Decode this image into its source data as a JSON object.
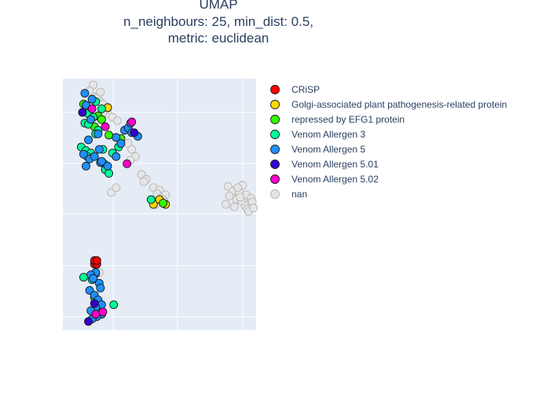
{
  "chart_data": {
    "type": "scatter",
    "title_lines": [
      "UMAP",
      "n_neighbours: 25, min_dist: 0.5,",
      "metric: euclidean"
    ],
    "xlabel": "",
    "ylabel": "",
    "xlim": [
      0,
      15
    ],
    "ylim": [
      0,
      20
    ],
    "grid": true,
    "legend_position": "right",
    "series": [
      {
        "name": "CRiSP",
        "color": "#ff0000",
        "x": [
          2.1,
          2.3,
          2.1,
          2.3
        ],
        "y": [
          5.0,
          5.0,
          5.3,
          5.3
        ]
      },
      {
        "name": "Golgi-associated plant pathogenesis-related protein",
        "color": "#ffd700",
        "x": [
          3.2,
          7.5,
          7.0,
          8.0
        ],
        "y": [
          18.1,
          10.4,
          10.0,
          10.0
        ]
      },
      {
        "name": "repressed by EFG1 protein",
        "color": "#33ff00",
        "x": [
          1.2,
          2.4,
          2.7,
          2.1,
          3.3,
          4.3,
          7.8
        ],
        "y": [
          18.4,
          17.4,
          17.1,
          16.5,
          15.8,
          15.5,
          10.1
        ]
      },
      {
        "name": "Venom Allergen 3",
        "color": "#00ff99",
        "x": [
          2.2,
          2.7,
          1.6,
          2.0,
          1.3,
          1.6,
          2.4,
          2.2,
          1.0,
          1.4,
          1.8,
          2.8,
          1.5,
          2.9,
          3.0,
          3.3,
          3.6,
          4.1,
          2.2,
          1.2,
          3.7,
          6.8,
          2.1,
          2.6,
          1.9
        ],
        "y": [
          18.6,
          18.0,
          17.6,
          17.3,
          16.8,
          16.7,
          16.2,
          15.9,
          14.8,
          14.5,
          14.3,
          14.6,
          14.0,
          13.4,
          12.9,
          12.6,
          14.3,
          14.8,
          4.2,
          3.9,
          1.6,
          10.4,
          2.2,
          1.2,
          3.7
        ]
      },
      {
        "name": "Venom Allergen 5",
        "color": "#1e90ff",
        "x": [
          1.3,
          1.9,
          1.4,
          1.2,
          1.7,
          2.6,
          3.2,
          3.9,
          4.6,
          1.6,
          1.4,
          2.4,
          1.8,
          3.9,
          4.3,
          4.9,
          5.2,
          5.7,
          2.7,
          2.5,
          2.1,
          2.2,
          1.8,
          2.0,
          2.5,
          2.6,
          1.7,
          2.1,
          2.4,
          2.7,
          2.2,
          1.8,
          2.7,
          2.3,
          1.9,
          5.1
        ],
        "y": [
          19.3,
          18.8,
          18.3,
          14.2,
          13.8,
          13.5,
          13.2,
          14.0,
          16.2,
          15.4,
          13.2,
          15.9,
          17.1,
          15.6,
          15.1,
          16.4,
          16.0,
          15.7,
          13.6,
          14.6,
          14.0,
          4.3,
          4.1,
          3.8,
          3.4,
          3.0,
          2.8,
          2.4,
          2.0,
          1.6,
          1.4,
          1.1,
          0.8,
          0.6,
          0.4,
          16.8
        ]
      },
      {
        "name": "Venom Allergen 5.01",
        "color": "#3300cc",
        "x": [
          1.1,
          2.1,
          1.6,
          5.4
        ],
        "y": [
          17.7,
          1.7,
          0.2,
          16.0
        ]
      },
      {
        "name": "Venom Allergen 5.02",
        "color": "#ff00cc",
        "x": [
          1.9,
          3.0,
          5.2,
          4.8,
          2.2,
          2.8
        ],
        "y": [
          18.0,
          16.5,
          16.9,
          13.4,
          0.8,
          1.0
        ]
      },
      {
        "name": "nan",
        "color": "#e5e5e5",
        "x": [
          2.1,
          2.5,
          2.8,
          3.1,
          3.2,
          3.0,
          3.6,
          4.0,
          2.8,
          2.3,
          4.9,
          5.2,
          5.5,
          5.1,
          6.0,
          6.4,
          6.2,
          7.0,
          7.5,
          7.3,
          7.7,
          8.0,
          7.8,
          7.9,
          7.2,
          3.5,
          3.9,
          1.9,
          2.5,
          13.2,
          13.6,
          13.3,
          13.9,
          14.1,
          14.4,
          14.0,
          14.7,
          15.1,
          15.0,
          14.6,
          14.3,
          13.7,
          14.8,
          15.2,
          13.0,
          14.2,
          14.9,
          15.3,
          2.0,
          1.7,
          2.6
        ],
        "y": [
          19.0,
          18.7,
          18.4,
          18.0,
          17.6,
          17.9,
          17.3,
          17.0,
          17.7,
          18.9,
          15.1,
          14.6,
          14.0,
          13.7,
          12.5,
          12.1,
          11.9,
          11.4,
          11.2,
          10.9,
          10.6,
          10.8,
          10.4,
          10.2,
          10.0,
          11.0,
          11.4,
          4.0,
          4.3,
          11.5,
          11.1,
          10.7,
          10.4,
          11.0,
          11.6,
          11.4,
          10.8,
          10.5,
          10.1,
          9.9,
          10.3,
          9.8,
          9.6,
          10.2,
          10.0,
          10.6,
          9.4,
          9.7,
          20.0,
          19.5,
          19.4
        ]
      }
    ]
  }
}
